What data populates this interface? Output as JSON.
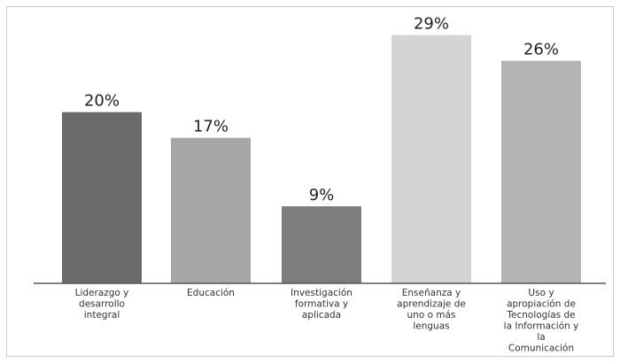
{
  "chart_data": {
    "type": "bar",
    "title": "",
    "xlabel": "",
    "ylabel": "",
    "ylim": [
      0,
      30
    ],
    "grid": false,
    "legend": "none",
    "categories": [
      "Liderazgo y desarrollo integral",
      "Educación",
      "Investigación formativa y aplicada",
      "Enseñanza y aprendizaje de uno o más lenguas",
      "Uso y apropiación de Tecnologías de la Información y la Comunicación"
    ],
    "category_lines": [
      [
        "Liderazgo y",
        "desarrollo",
        "integral"
      ],
      [
        "Educación"
      ],
      [
        "Investigación",
        "formativa y",
        "aplicada"
      ],
      [
        "Enseñanza y",
        "aprendizaje de",
        "uno o más",
        "lenguas"
      ],
      [
        "Uso y",
        "apropiación de",
        "Tecnologías de",
        "la Información y",
        "la",
        "Comunicación"
      ]
    ],
    "values": [
      20,
      17,
      9,
      29,
      26
    ],
    "value_labels": [
      "20%",
      "17%",
      "9%",
      "29%",
      "26%"
    ],
    "colors": [
      "#6b6b6b",
      "#a6a6a6",
      "#7d7d7d",
      "#d4d4d4",
      "#b4b4b4"
    ],
    "axis_color": "#555555"
  }
}
